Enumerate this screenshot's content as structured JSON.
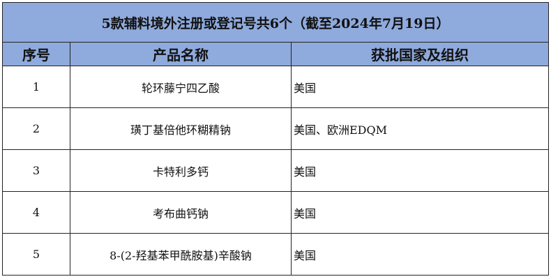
{
  "table": {
    "title": "5款辅料境外注册或登记号共6个（截至2024年7月19日）",
    "headers": [
      "序号",
      "产品名称",
      "获批国家及组织"
    ],
    "header_color": "#8FAADC",
    "rows": [
      {
        "no": "1",
        "name": "轮环藤宁四乙酸",
        "approval": "美国"
      },
      {
        "no": "2",
        "name": "璜丁基倍他环糊精钠",
        "approval": "美国、欧洲EDQM"
      },
      {
        "no": "3",
        "name": "卡特利多钙",
        "approval": "美国"
      },
      {
        "no": "4",
        "name": "考布曲钙钠",
        "approval": "美国"
      },
      {
        "no": "5",
        "name": "8-(2-羟基苯甲酰胺基)辛酸钠",
        "approval": "美国"
      }
    ]
  }
}
